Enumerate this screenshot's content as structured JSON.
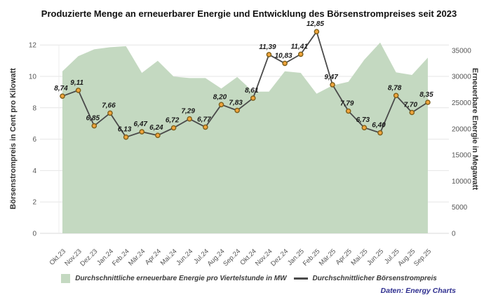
{
  "title": "Produzierte Menge an erneuerbarer Energie und Entwicklung des Börsenstrompreises seit 2023",
  "attribution": "Daten: Energy Charts",
  "legend": [
    {
      "swatch": "area",
      "label": "Durchschnittliche erneuerbare Energie pro Viertelstunde in MW"
    },
    {
      "swatch": "line",
      "label": "Durchschnittlicher Börsenstrompreis"
    }
  ],
  "colors": {
    "area_fill": "#c4d9c1",
    "line": "#4a4a4a",
    "marker_fill": "#f0a43c",
    "marker_border": "#7d5f1a",
    "grid": "#e6e6e6",
    "baseline": "#d9d9d9",
    "point_label": "#1a1a1a",
    "axis_tick_text": "#555555",
    "axis_title_text": "#333333",
    "attribution_text": "#2e2e8f"
  },
  "chart_data": {
    "type": "combo-area-line",
    "categories": [
      "Okt.23",
      "Nov.23",
      "Dez.23",
      "Jan.24",
      "Feb.24",
      "Mär.24",
      "Apr.24",
      "Mai.24",
      "Jun.24",
      "Jul.24",
      "Aug.24",
      "Sep.24",
      "Okt.24",
      "Nov.24",
      "Dez.24",
      "Jan.25",
      "Feb.25",
      "Mär.25",
      "Apr.25",
      "Mai.25",
      "Jun.25",
      "Jul.25",
      "Aug.25",
      "Sep.25"
    ],
    "series": [
      {
        "name": "Durchschnittliche erneuerbare Energie pro Viertelstunde in MW",
        "type": "area",
        "axis": "right",
        "values": [
          31000,
          33900,
          35200,
          35600,
          35800,
          30700,
          33000,
          30000,
          29700,
          29700,
          27700,
          29900,
          27100,
          27100,
          31000,
          30700,
          26700,
          28300,
          29000,
          33200,
          36500,
          30800,
          30300,
          33600
        ]
      },
      {
        "name": "Durchschnittlicher Börsenstrompreis",
        "type": "line",
        "axis": "left",
        "values": [
          8.74,
          9.11,
          6.85,
          7.66,
          6.13,
          6.47,
          6.24,
          6.72,
          7.29,
          6.77,
          8.2,
          7.83,
          8.61,
          11.39,
          10.83,
          11.41,
          12.85,
          9.47,
          7.79,
          6.73,
          6.4,
          8.78,
          7.7,
          8.35
        ],
        "point_labels": [
          "8,74",
          "9,11",
          "6,85",
          "7,66",
          "6,13",
          "6,47",
          "6,24",
          "6,72",
          "7,29",
          "6,77",
          "8,20",
          "7,83",
          "8,61",
          "11,39",
          "10,83",
          "11,41",
          "12,85",
          "9,47",
          "7,79",
          "6,73",
          "6,40",
          "8,78",
          "7,70",
          "8,35"
        ]
      }
    ],
    "left_axis": {
      "title": "Börsenstrompreis in Cent pro Kilowatt",
      "ticks": [
        0,
        2,
        4,
        6,
        8,
        10,
        12
      ],
      "range": [
        0,
        13
      ]
    },
    "right_axis": {
      "title": "Erneuerbare Energie in Megawatt",
      "ticks": [
        0,
        5000,
        10000,
        15000,
        20000,
        25000,
        30000,
        35000
      ],
      "range": [
        0,
        37500
      ]
    },
    "grid": "horizontal",
    "legend_position": "bottom"
  }
}
